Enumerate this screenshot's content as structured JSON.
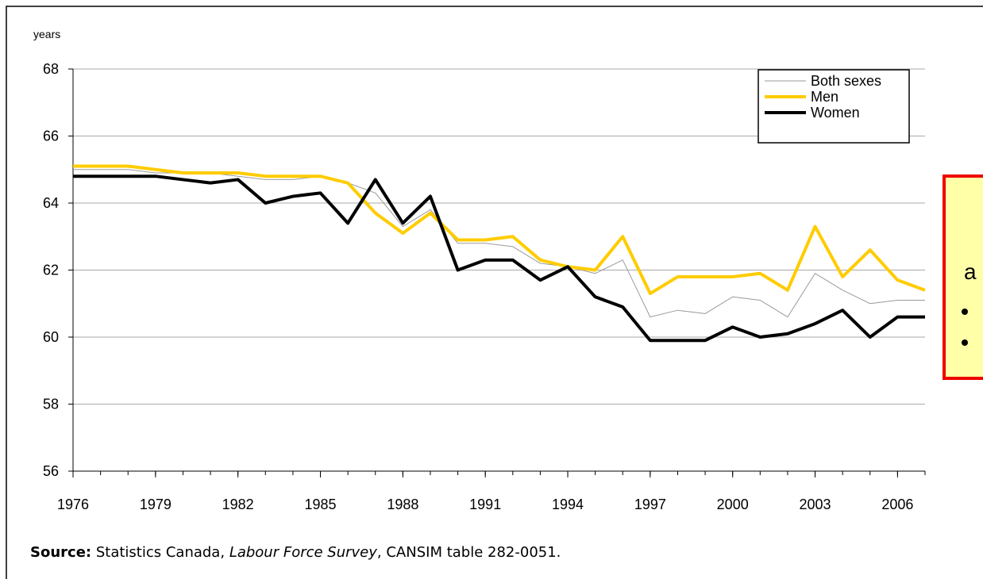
{
  "chart_data": {
    "type": "line",
    "y_label": "years",
    "x": [
      1976,
      1977,
      1978,
      1979,
      1980,
      1981,
      1982,
      1983,
      1984,
      1985,
      1986,
      1987,
      1988,
      1989,
      1990,
      1991,
      1992,
      1993,
      1994,
      1995,
      1996,
      1997,
      1998,
      1999,
      2000,
      2001,
      2002,
      2003,
      2004,
      2005,
      2006,
      2007
    ],
    "series": [
      {
        "name": "Both sexes",
        "color": "#9a9a9a",
        "width": 1,
        "values": [
          65.0,
          65.0,
          65.0,
          64.9,
          64.9,
          64.9,
          64.8,
          64.7,
          64.7,
          64.8,
          64.6,
          64.3,
          63.3,
          63.8,
          62.8,
          62.8,
          62.7,
          62.2,
          62.1,
          61.9,
          62.3,
          60.6,
          60.8,
          60.7,
          61.2,
          61.1,
          60.6,
          61.9,
          61.4,
          61.0,
          61.1,
          61.1
        ]
      },
      {
        "name": "Men",
        "color": "#ffcc00",
        "width": 4,
        "values": [
          65.1,
          65.1,
          65.1,
          65.0,
          64.9,
          64.9,
          64.9,
          64.8,
          64.8,
          64.8,
          64.6,
          63.7,
          63.1,
          63.7,
          62.9,
          62.9,
          63.0,
          62.3,
          62.1,
          62.0,
          63.0,
          61.3,
          61.8,
          61.8,
          61.8,
          61.9,
          61.4,
          63.3,
          61.8,
          62.6,
          61.7,
          61.4
        ]
      },
      {
        "name": "Women",
        "color": "#000000",
        "width": 4,
        "values": [
          64.8,
          64.8,
          64.8,
          64.8,
          64.7,
          64.6,
          64.7,
          64.0,
          64.2,
          64.3,
          63.4,
          64.7,
          63.4,
          64.2,
          62.0,
          62.3,
          62.3,
          61.7,
          62.1,
          61.2,
          60.9,
          59.9,
          59.9,
          59.9,
          60.3,
          60.0,
          60.1,
          60.4,
          60.8,
          60.0,
          60.6,
          60.6
        ]
      }
    ],
    "xlim": [
      1976,
      2007
    ],
    "xticks": [
      1976,
      1979,
      1982,
      1985,
      1988,
      1991,
      1994,
      1997,
      2000,
      2003,
      2006
    ],
    "ylim": [
      56,
      68
    ],
    "yticks": [
      56,
      58,
      60,
      62,
      64,
      66,
      68
    ],
    "grid": true,
    "legend": "top-right",
    "source": [
      "Source:",
      "Statistics Canada,",
      "Labour Force Survey",
      ", CANSIM table 282-0051."
    ],
    "callout": "a"
  }
}
